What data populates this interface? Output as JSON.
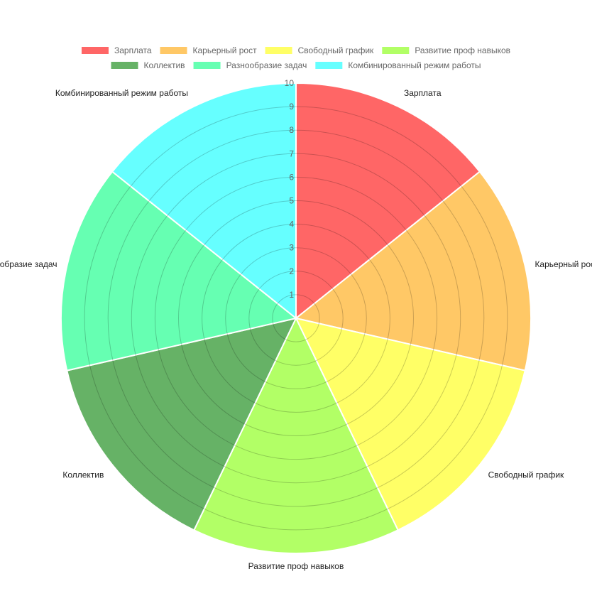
{
  "chart_data": {
    "type": "polarArea",
    "title": "",
    "categories": [
      "Зарплата",
      "Карьерный рост",
      "Свободный график",
      "Развитие проф навыков",
      "Коллектив",
      "Разнообразие задач",
      "Комбинированный режим работы"
    ],
    "values": [
      10,
      10,
      10,
      10,
      10,
      10,
      10
    ],
    "colors": [
      "#ff6666",
      "#ffc866",
      "#ffff66",
      "#b2ff66",
      "#66b266",
      "#66ffb2",
      "#66ffff"
    ],
    "r_axis": {
      "min": 0,
      "max": 10,
      "step": 1,
      "ticks": [
        "1",
        "2",
        "3",
        "4",
        "5",
        "6",
        "7",
        "8",
        "9",
        "10"
      ]
    },
    "grid": true,
    "legend": {
      "position": "top",
      "entries": [
        "Зарплата",
        "Карьерный рост",
        "Свободный график",
        "Развитие проф навыков",
        "Коллектив",
        "Разнообразие задач",
        "Комбинированный режим работы"
      ]
    }
  }
}
